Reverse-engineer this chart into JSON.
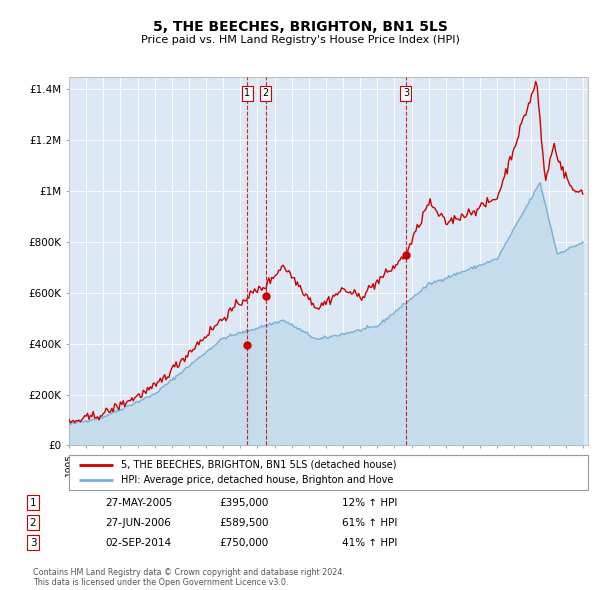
{
  "title": "5, THE BEECHES, BRIGHTON, BN1 5LS",
  "subtitle": "Price paid vs. HM Land Registry's House Price Index (HPI)",
  "background_color": "#dce9f5",
  "plot_bg_color": "#dce9f5",
  "ylim": [
    0,
    1450000
  ],
  "yticks": [
    0,
    200000,
    400000,
    600000,
    800000,
    1000000,
    1200000,
    1400000
  ],
  "ytick_labels": [
    "£0",
    "£200K",
    "£400K",
    "£600K",
    "£800K",
    "£1M",
    "£1.2M",
    "£1.4M"
  ],
  "legend_line1": "5, THE BEECHES, BRIGHTON, BN1 5LS (detached house)",
  "legend_line2": "HPI: Average price, detached house, Brighton and Hove",
  "sale_dates": [
    2005.41,
    2006.49,
    2014.67
  ],
  "sale_prices": [
    395000,
    589500,
    750000
  ],
  "sale_labels": [
    "1",
    "2",
    "3"
  ],
  "vline_dates": [
    2005.41,
    2006.49,
    2014.67
  ],
  "footer_line1": "Contains HM Land Registry data © Crown copyright and database right 2024.",
  "footer_line2": "This data is licensed under the Open Government Licence v3.0.",
  "table_entries": [
    [
      "1",
      "27-MAY-2005",
      "£395,000",
      "12% ↑ HPI"
    ],
    [
      "2",
      "27-JUN-2006",
      "£589,500",
      "61% ↑ HPI"
    ],
    [
      "3",
      "02-SEP-2014",
      "£750,000",
      "41% ↑ HPI"
    ]
  ],
  "red_line_color": "#cc0000",
  "blue_line_color": "#7ab0d4",
  "blue_fill_color": "#c5dced",
  "vline_color": "#cc0000"
}
